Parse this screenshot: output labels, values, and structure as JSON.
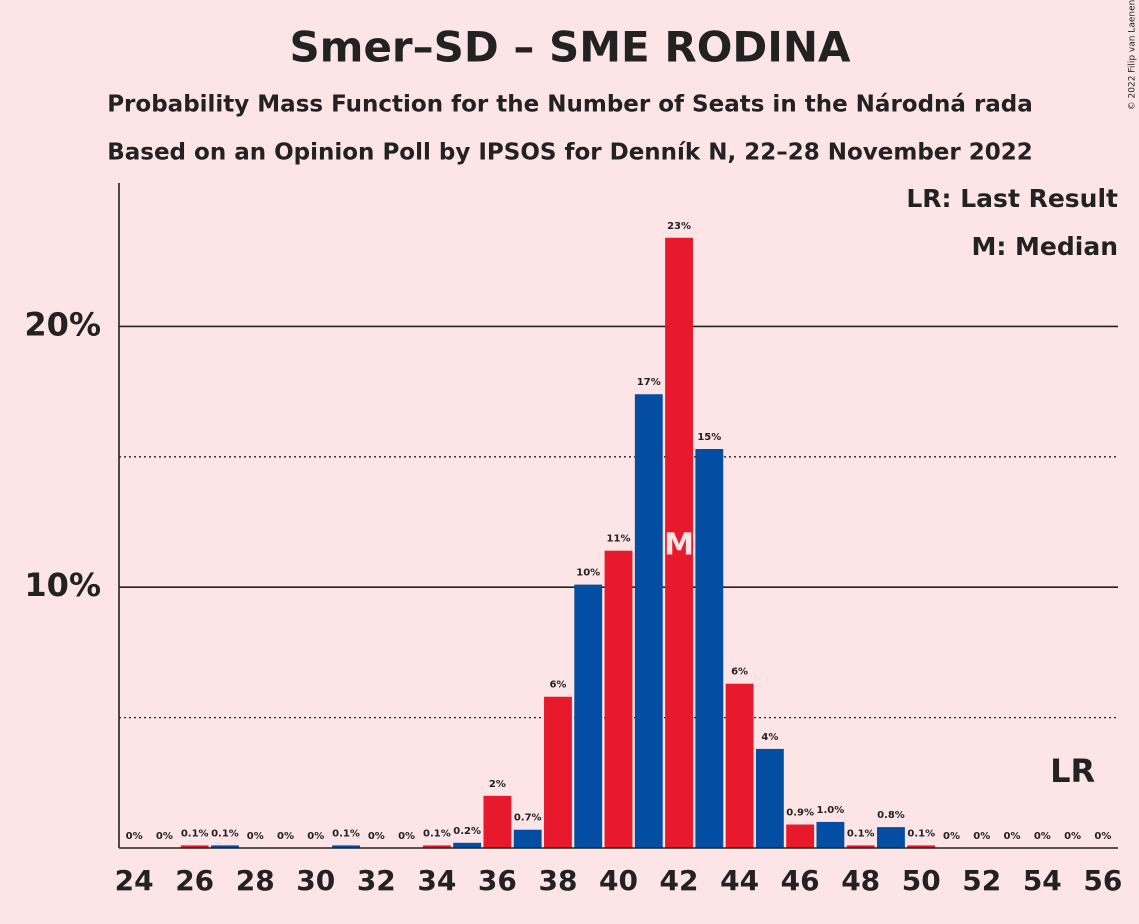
{
  "chart_data": {
    "type": "bar",
    "title": "Smer–SD – SME RODINA",
    "subtitle": "Probability Mass Function for the Number of Seats in the Národná rada",
    "subtitle2": "Based on an Opinion Poll by IPSOS for Denník N, 22–28 November 2022",
    "legend": [
      "LR: Last Result",
      "M: Median"
    ],
    "copyright": "© 2022 Filip van Laenen",
    "x": [
      24,
      25,
      26,
      27,
      28,
      29,
      30,
      31,
      32,
      33,
      34,
      35,
      36,
      37,
      38,
      39,
      40,
      41,
      42,
      43,
      44,
      45,
      46,
      47,
      48,
      49,
      50,
      51,
      52,
      53,
      54,
      55,
      56
    ],
    "values": [
      0,
      0,
      0.1,
      0.1,
      0,
      0,
      0,
      0.1,
      0,
      0,
      0.1,
      0.2,
      2.0,
      0.7,
      5.8,
      10.1,
      11.4,
      17.4,
      23.4,
      15.3,
      6.3,
      3.8,
      0.9,
      1.0,
      0.1,
      0.8,
      0.1,
      0,
      0,
      0,
      0,
      0,
      0
    ],
    "value_labels": [
      "0%",
      "0%",
      "0.1%",
      "0.1%",
      "0%",
      "0%",
      "0%",
      "0.1%",
      "0%",
      "0%",
      "0.1%",
      "0.2%",
      "2%",
      "0.7%",
      "6%",
      "10%",
      "11%",
      "17%",
      "23%",
      "15%",
      "6%",
      "4%",
      "0.9%",
      "1.0%",
      "0.1%",
      "0.8%",
      "0.1%",
      "0%",
      "0%",
      "0%",
      "0%",
      "0%",
      "0%"
    ],
    "colors": [
      "#e8192c",
      "#034ea2"
    ],
    "xlim": [
      23.5,
      56.5
    ],
    "xticks": [
      24,
      26,
      28,
      30,
      32,
      34,
      36,
      38,
      40,
      42,
      44,
      46,
      48,
      50,
      52,
      54,
      56
    ],
    "ylim": [
      0,
      25.5
    ],
    "yticks": [
      {
        "value": 10,
        "label": "10%"
      },
      {
        "value": 20,
        "label": "20%"
      }
    ],
    "minor_yticks": [
      5,
      15
    ],
    "median": 42,
    "median_label": "M",
    "last_result": 55,
    "last_result_label": "LR"
  }
}
